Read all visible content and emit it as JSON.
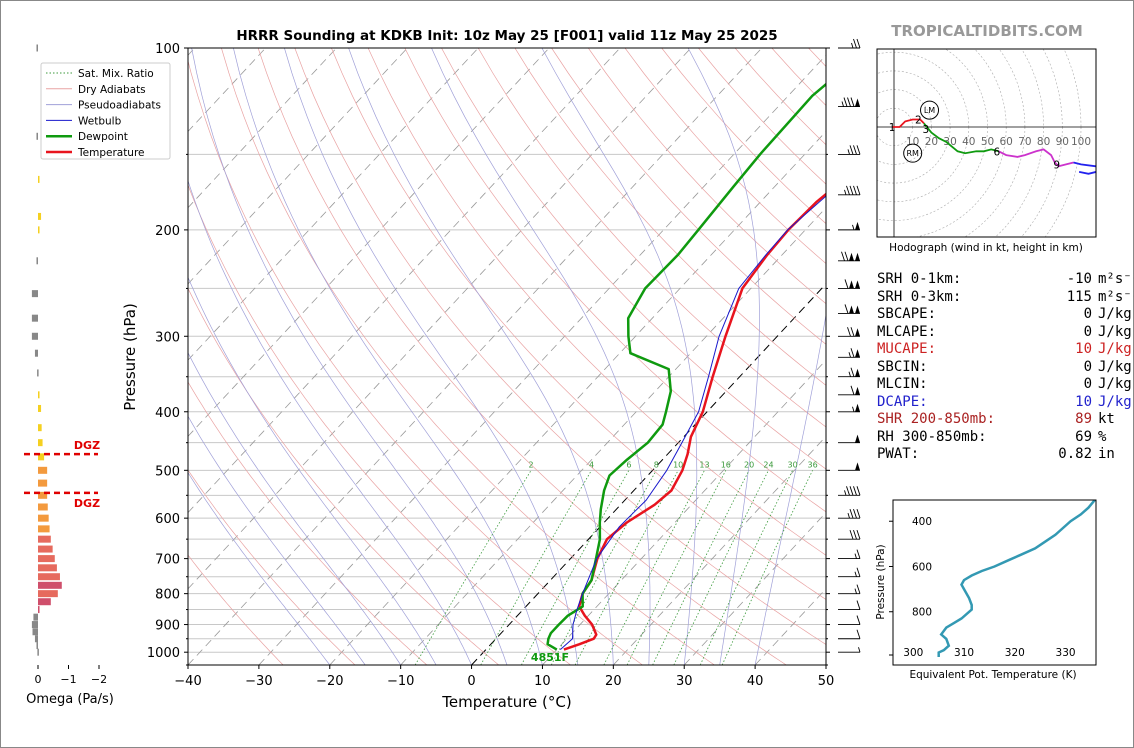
{
  "title": "HRRR Sounding at KDKB Init: 10z May 25 [F001] valid 11z May 25 2025",
  "brand": "TROPICALTIDBITS.COM",
  "colors": {
    "temperature": "#e8141e",
    "dewpoint": "#0f9a0f",
    "wetbulb": "#1818cc",
    "dgz": "#e00000",
    "mucape": "#cc2222",
    "dcape": "#2222cc",
    "shr": "#aa2222",
    "hodo_theta": "#3399b3"
  },
  "chart_data": [
    {
      "type": "line",
      "name": "skewt",
      "xlabel": "Temperature (°C)",
      "ylabel": "Pressure (hPa)",
      "xlim": [
        -40,
        50
      ],
      "ylim": [
        1050,
        100
      ],
      "y_scale": "log",
      "x_ticks": [
        "−40",
        "−30",
        "−20",
        "−10",
        "0",
        "10",
        "20",
        "30",
        "40",
        "50"
      ],
      "y_ticks": [
        "100",
        "200",
        "300",
        "400",
        "500",
        "600",
        "700",
        "800",
        "900",
        "1000"
      ],
      "legend": {
        "placement": "top-left",
        "entries": [
          "Sat. Mix. Ratio",
          "Dry Adiabats",
          "Pseudoadiabats",
          "Wetbulb",
          "Dewpoint",
          "Temperature"
        ]
      },
      "mixing_ratio_labels": [
        "2",
        "4",
        "6",
        "8",
        "10",
        "13",
        "16",
        "20",
        "24",
        "30",
        "36"
      ],
      "parcel_label": "4851F",
      "series": [
        {
          "name": "Temperature",
          "points": [
            [
              990,
              11
            ],
            [
              970,
              12.5
            ],
            [
              950,
              13.8
            ],
            [
              935,
              13.6
            ],
            [
              900,
              11.7
            ],
            [
              870,
              9.5
            ],
            [
              840,
              7.5
            ],
            [
              800,
              6.3
            ],
            [
              760,
              5.8
            ],
            [
              700,
              3.8
            ],
            [
              650,
              2.6
            ],
            [
              610,
              3.2
            ],
            [
              570,
              4.8
            ],
            [
              540,
              5.3
            ],
            [
              500,
              4.2
            ],
            [
              470,
              2.8
            ],
            [
              440,
              1
            ],
            [
              400,
              -0.6
            ],
            [
              350,
              -3.8
            ],
            [
              300,
              -7.3
            ],
            [
              250,
              -11.2
            ],
            [
              220,
              -12.1
            ],
            [
              200,
              -12.4
            ],
            [
              180,
              -12.1
            ],
            [
              150,
              -10.2
            ],
            [
              120,
              -6.8
            ],
            [
              100,
              -3.5
            ]
          ]
        },
        {
          "name": "Dewpoint",
          "points": [
            [
              990,
              10
            ],
            [
              970,
              8
            ],
            [
              950,
              7.4
            ],
            [
              930,
              7
            ],
            [
              900,
              7
            ],
            [
              870,
              7.1
            ],
            [
              840,
              8
            ],
            [
              800,
              6.3
            ],
            [
              760,
              5.8
            ],
            [
              700,
              3.6
            ],
            [
              650,
              1.6
            ],
            [
              610,
              -0.6
            ],
            [
              580,
              -2.2
            ],
            [
              540,
              -4.2
            ],
            [
              510,
              -5.4
            ],
            [
              480,
              -5
            ],
            [
              450,
              -4.3
            ],
            [
              420,
              -4.6
            ],
            [
              400,
              -5.8
            ],
            [
              370,
              -7.8
            ],
            [
              340,
              -11
            ],
            [
              320,
              -18.5
            ],
            [
              300,
              -21
            ],
            [
              280,
              -23.4
            ],
            [
              250,
              -24.9
            ],
            [
              220,
              -24.7
            ],
            [
              200,
              -25.1
            ],
            [
              170,
              -25.8
            ],
            [
              150,
              -26.3
            ],
            [
              120,
              -26.6
            ],
            [
              100,
              -24.9
            ]
          ]
        },
        {
          "name": "Wetbulb",
          "points": [
            [
              990,
              10.5
            ],
            [
              950,
              10.8
            ],
            [
              900,
              9
            ],
            [
              850,
              7.6
            ],
            [
              800,
              6.3
            ],
            [
              700,
              3.7
            ],
            [
              620,
              2.7
            ],
            [
              560,
              3
            ],
            [
              500,
              2
            ],
            [
              450,
              0.5
            ],
            [
              400,
              -1.2
            ],
            [
              350,
              -4.4
            ],
            [
              300,
              -8.2
            ],
            [
              250,
              -11.7
            ],
            [
              220,
              -12.3
            ],
            [
              200,
              -12.5
            ],
            [
              150,
              -10.3
            ],
            [
              120,
              -7
            ],
            [
              100,
              -4
            ]
          ]
        }
      ]
    },
    {
      "type": "bar",
      "name": "omega",
      "xlabel": "Omega (Pa/s)",
      "x_ticks": [
        "0",
        "−1",
        "−2"
      ],
      "dgz_label": "DGZ",
      "dgz_levels_hpa": [
        470,
        545
      ],
      "bars": [
        [
          100,
          0.05
        ],
        [
          140,
          0.05
        ],
        [
          165,
          -0.02
        ],
        [
          190,
          -0.1
        ],
        [
          200,
          -0.05
        ],
        [
          225,
          0.05
        ],
        [
          255,
          0.2
        ],
        [
          280,
          0.2
        ],
        [
          300,
          0.2
        ],
        [
          320,
          0.1
        ],
        [
          345,
          0.03
        ],
        [
          375,
          -0.05
        ],
        [
          395,
          -0.1
        ],
        [
          425,
          -0.12
        ],
        [
          450,
          -0.15
        ],
        [
          475,
          -0.2
        ],
        [
          500,
          -0.3
        ],
        [
          525,
          -0.3
        ],
        [
          550,
          -0.3
        ],
        [
          575,
          -0.32
        ],
        [
          600,
          -0.35
        ],
        [
          625,
          -0.38
        ],
        [
          650,
          -0.42
        ],
        [
          675,
          -0.48
        ],
        [
          700,
          -0.55
        ],
        [
          725,
          -0.62
        ],
        [
          750,
          -0.72
        ],
        [
          775,
          -0.78
        ],
        [
          800,
          -0.65
        ],
        [
          825,
          -0.42
        ],
        [
          850,
          -0.05
        ],
        [
          875,
          0.15
        ],
        [
          900,
          0.2
        ],
        [
          925,
          0.18
        ],
        [
          950,
          0.1
        ],
        [
          975,
          0.05
        ],
        [
          1000,
          0.02
        ]
      ]
    },
    {
      "type": "line",
      "name": "hodograph",
      "xlabel": "Hodograph (wind in kt, height in km)",
      "ring_labels": [
        "10",
        "20",
        "30",
        "40",
        "50",
        "60",
        "70",
        "80",
        "90",
        "100"
      ],
      "height_labels": [
        "1",
        "2",
        "3",
        "6",
        "9"
      ],
      "markers": [
        "LM",
        "RM"
      ],
      "points": [
        [
          -1,
          0
        ],
        [
          3,
          0
        ],
        [
          6,
          3
        ],
        [
          10,
          4
        ],
        [
          14,
          4
        ],
        [
          16,
          2
        ],
        [
          20,
          -3
        ],
        [
          24,
          -6
        ],
        [
          28,
          -8
        ],
        [
          34,
          -13
        ],
        [
          38,
          -14
        ],
        [
          44,
          -13
        ],
        [
          48,
          -13
        ],
        [
          52,
          -12
        ],
        [
          56,
          -13
        ],
        [
          60,
          -15
        ],
        [
          66,
          -16
        ],
        [
          70,
          -15
        ],
        [
          76,
          -13
        ],
        [
          80,
          -12
        ],
        [
          84,
          -15
        ],
        [
          86,
          -19
        ],
        [
          88,
          -21
        ],
        [
          92,
          -20
        ],
        [
          96,
          -19
        ],
        [
          100,
          -20
        ],
        [
          108,
          -21
        ],
        [
          112,
          -22
        ],
        [
          108,
          -24
        ],
        [
          104,
          -25
        ],
        [
          99,
          -24
        ]
      ]
    },
    {
      "type": "line",
      "name": "theta_e",
      "xlabel": "Equivalent Pot. Temperature (K)",
      "ylabel": "Pressure (hPa)",
      "xlim": [
        296,
        336
      ],
      "ylim": [
        1000,
        300
      ],
      "x_ticks": [
        "300",
        "310",
        "320",
        "330"
      ],
      "y_ticks": [
        "400",
        "600",
        "800"
      ],
      "points": [
        [
          305,
          1000
        ],
        [
          305,
          980
        ],
        [
          306,
          970
        ],
        [
          307,
          950
        ],
        [
          306.5,
          920
        ],
        [
          305.5,
          900
        ],
        [
          306.5,
          870
        ],
        [
          308,
          850
        ],
        [
          309.5,
          830
        ],
        [
          311.5,
          790
        ],
        [
          311.5,
          770
        ],
        [
          311,
          740
        ],
        [
          310,
          700
        ],
        [
          309.5,
          680
        ],
        [
          310,
          660
        ],
        [
          311.5,
          640
        ],
        [
          313.5,
          620
        ],
        [
          316,
          600
        ],
        [
          319,
          570
        ],
        [
          321,
          550
        ],
        [
          324,
          520
        ],
        [
          326,
          490
        ],
        [
          328,
          460
        ],
        [
          329.5,
          430
        ],
        [
          331,
          400
        ],
        [
          333,
          370
        ],
        [
          334.5,
          340
        ],
        [
          336,
          300
        ]
      ]
    }
  ],
  "stats": [
    {
      "label": "SRH 0-1km:",
      "value": "-10",
      "unit": "m²s⁻²",
      "tone": "normal"
    },
    {
      "label": "SRH 0-3km:",
      "value": "115",
      "unit": "m²s⁻²",
      "tone": "normal"
    },
    {
      "label": "SBCAPE:",
      "value": "0",
      "unit": "J/kg",
      "tone": "normal"
    },
    {
      "label": "MLCAPE:",
      "value": "0",
      "unit": "J/kg",
      "tone": "normal"
    },
    {
      "label": "MUCAPE:",
      "value": "10",
      "unit": "J/kg",
      "tone": "mucape"
    },
    {
      "label": "SBCIN:",
      "value": "0",
      "unit": "J/kg",
      "tone": "normal"
    },
    {
      "label": "MLCIN:",
      "value": "0",
      "unit": "J/kg",
      "tone": "normal"
    },
    {
      "label": "DCAPE:",
      "value": "10",
      "unit": "J/kg",
      "tone": "dcape"
    },
    {
      "label": "SHR 200-850mb:",
      "value": "89",
      "unit": "kt",
      "tone": "shr"
    },
    {
      "label": "RH 300-850mb:",
      "value": "69",
      "unit": "%",
      "tone": "normal"
    },
    {
      "label": "PWAT:",
      "value": "0.82",
      "unit": "in",
      "tone": "normal"
    }
  ],
  "wind_barbs": [
    {
      "p": 100,
      "spd": 25,
      "dir": 340
    },
    {
      "p": 125,
      "spd": 85,
      "dir": 290
    },
    {
      "p": 150,
      "spd": 35,
      "dir": 275
    },
    {
      "p": 175,
      "spd": 45,
      "dir": 275
    },
    {
      "p": 200,
      "spd": 55,
      "dir": 275
    },
    {
      "p": 225,
      "spd": 120,
      "dir": 275
    },
    {
      "p": 250,
      "spd": 110,
      "dir": 275
    },
    {
      "p": 275,
      "spd": 110,
      "dir": 275
    },
    {
      "p": 300,
      "spd": 70,
      "dir": 275
    },
    {
      "p": 325,
      "spd": 65,
      "dir": 275
    },
    {
      "p": 350,
      "spd": 65,
      "dir": 275
    },
    {
      "p": 375,
      "spd": 60,
      "dir": 275
    },
    {
      "p": 400,
      "spd": 55,
      "dir": 275
    },
    {
      "p": 450,
      "spd": 50,
      "dir": 275
    },
    {
      "p": 500,
      "spd": 50,
      "dir": 275
    },
    {
      "p": 550,
      "spd": 45,
      "dir": 285
    },
    {
      "p": 600,
      "spd": 35,
      "dir": 290
    },
    {
      "p": 650,
      "spd": 30,
      "dir": 295
    },
    {
      "p": 700,
      "spd": 15,
      "dir": 290
    },
    {
      "p": 750,
      "spd": 15,
      "dir": 290
    },
    {
      "p": 800,
      "spd": 15,
      "dir": 300
    },
    {
      "p": 850,
      "spd": 10,
      "dir": 320
    },
    {
      "p": 900,
      "spd": 10,
      "dir": 330
    },
    {
      "p": 950,
      "spd": 10,
      "dir": 330
    },
    {
      "p": 1000,
      "spd": 5,
      "dir": 340
    }
  ]
}
